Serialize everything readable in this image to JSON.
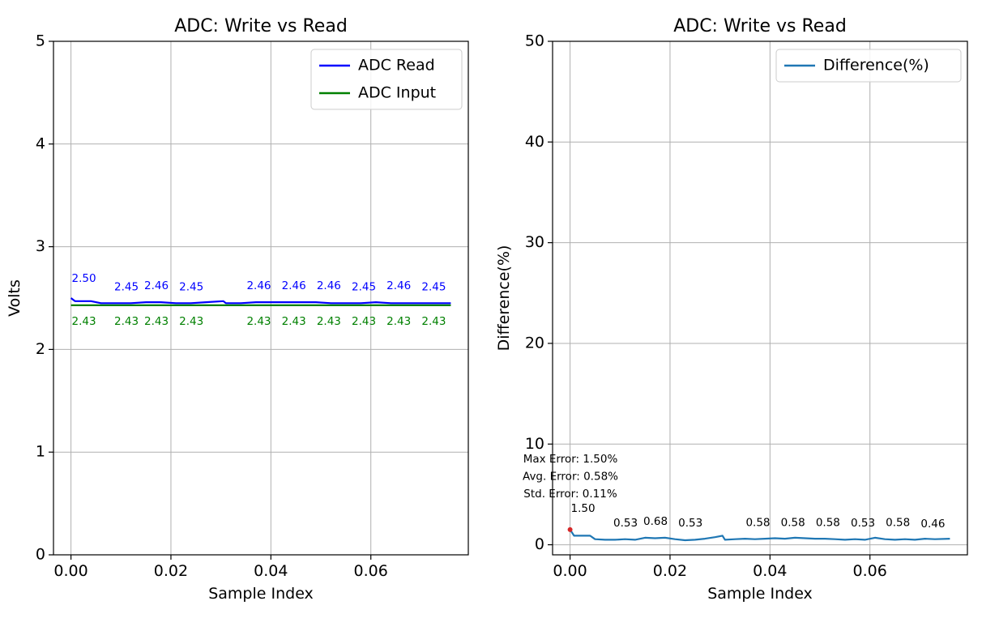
{
  "chart_data": [
    {
      "type": "line",
      "title": "ADC: Write vs Read",
      "xlabel": "Sample Index",
      "ylabel": "Volts",
      "xlim": [
        -0.0035,
        0.0795
      ],
      "ylim": [
        0,
        5
      ],
      "xticks": [
        0.0,
        0.02,
        0.04,
        0.06
      ],
      "xtick_labels": [
        "0.00",
        "0.02",
        "0.04",
        "0.06"
      ],
      "yticks": [
        0,
        1,
        2,
        3,
        4,
        5
      ],
      "ytick_labels": [
        "0",
        "1",
        "2",
        "3",
        "4",
        "5"
      ],
      "grid": true,
      "legend_position": "top-right",
      "series": [
        {
          "name": "ADC Read",
          "color": "#0000ff",
          "x": [
            0.0,
            0.0008,
            0.002,
            0.004,
            0.006,
            0.009,
            0.012,
            0.015,
            0.018,
            0.021,
            0.024,
            0.027,
            0.0305,
            0.031,
            0.034,
            0.037,
            0.04,
            0.043,
            0.046,
            0.049,
            0.052,
            0.055,
            0.058,
            0.061,
            0.064,
            0.067,
            0.07,
            0.073,
            0.076
          ],
          "y": [
            2.5,
            2.47,
            2.47,
            2.47,
            2.45,
            2.45,
            2.45,
            2.46,
            2.46,
            2.45,
            2.45,
            2.46,
            2.47,
            2.45,
            2.45,
            2.46,
            2.46,
            2.46,
            2.46,
            2.46,
            2.45,
            2.45,
            2.45,
            2.46,
            2.45,
            2.45,
            2.45,
            2.45,
            2.45
          ]
        },
        {
          "name": "ADC Input",
          "color": "#008000",
          "x": [
            0.0,
            0.076
          ],
          "y": [
            2.43,
            2.43
          ]
        }
      ],
      "annotations": [
        {
          "series": 0,
          "x": 0.0,
          "y": 2.5,
          "text": "2.50"
        },
        {
          "series": 0,
          "x": 0.0085,
          "y": 2.45,
          "text": "2.45"
        },
        {
          "series": 0,
          "x": 0.0145,
          "y": 2.46,
          "text": "2.46"
        },
        {
          "series": 0,
          "x": 0.0215,
          "y": 2.45,
          "text": "2.45"
        },
        {
          "series": 0,
          "x": 0.035,
          "y": 2.46,
          "text": "2.46"
        },
        {
          "series": 0,
          "x": 0.042,
          "y": 2.46,
          "text": "2.46"
        },
        {
          "series": 0,
          "x": 0.049,
          "y": 2.46,
          "text": "2.46"
        },
        {
          "series": 0,
          "x": 0.056,
          "y": 2.45,
          "text": "2.45"
        },
        {
          "series": 0,
          "x": 0.063,
          "y": 2.46,
          "text": "2.46"
        },
        {
          "series": 0,
          "x": 0.07,
          "y": 2.45,
          "text": "2.45"
        },
        {
          "series": 1,
          "x": 0.0,
          "y": 2.43,
          "text": "2.43"
        },
        {
          "series": 1,
          "x": 0.0085,
          "y": 2.43,
          "text": "2.43"
        },
        {
          "series": 1,
          "x": 0.0145,
          "y": 2.43,
          "text": "2.43"
        },
        {
          "series": 1,
          "x": 0.0215,
          "y": 2.43,
          "text": "2.43"
        },
        {
          "series": 1,
          "x": 0.035,
          "y": 2.43,
          "text": "2.43"
        },
        {
          "series": 1,
          "x": 0.042,
          "y": 2.43,
          "text": "2.43"
        },
        {
          "series": 1,
          "x": 0.049,
          "y": 2.43,
          "text": "2.43"
        },
        {
          "series": 1,
          "x": 0.056,
          "y": 2.43,
          "text": "2.43"
        },
        {
          "series": 1,
          "x": 0.063,
          "y": 2.43,
          "text": "2.43"
        },
        {
          "series": 1,
          "x": 0.07,
          "y": 2.43,
          "text": "2.43"
        }
      ]
    },
    {
      "type": "line",
      "title": "ADC: Write vs Read",
      "xlabel": "Sample Index",
      "ylabel": "Difference(%)",
      "xlim": [
        -0.0035,
        0.0795
      ],
      "ylim": [
        -1,
        50
      ],
      "xticks": [
        0.0,
        0.02,
        0.04,
        0.06
      ],
      "xtick_labels": [
        "0.00",
        "0.02",
        "0.04",
        "0.06"
      ],
      "yticks": [
        0,
        10,
        20,
        30,
        40,
        50
      ],
      "ytick_labels": [
        "0",
        "10",
        "20",
        "30",
        "40",
        "50"
      ],
      "grid": true,
      "legend_position": "top-right",
      "series": [
        {
          "name": "Difference(%)",
          "color": "#1f77b4",
          "x": [
            0.0,
            0.0008,
            0.002,
            0.004,
            0.005,
            0.007,
            0.009,
            0.011,
            0.013,
            0.015,
            0.017,
            0.019,
            0.021,
            0.023,
            0.025,
            0.027,
            0.029,
            0.0305,
            0.031,
            0.033,
            0.035,
            0.037,
            0.039,
            0.041,
            0.043,
            0.045,
            0.047,
            0.049,
            0.051,
            0.053,
            0.055,
            0.057,
            0.059,
            0.061,
            0.063,
            0.065,
            0.067,
            0.069,
            0.071,
            0.073,
            0.076
          ],
          "y": [
            1.5,
            0.9,
            0.9,
            0.9,
            0.55,
            0.5,
            0.5,
            0.55,
            0.5,
            0.7,
            0.65,
            0.7,
            0.55,
            0.45,
            0.5,
            0.6,
            0.75,
            0.9,
            0.5,
            0.55,
            0.6,
            0.55,
            0.6,
            0.65,
            0.6,
            0.7,
            0.65,
            0.6,
            0.6,
            0.55,
            0.5,
            0.55,
            0.5,
            0.7,
            0.55,
            0.5,
            0.55,
            0.5,
            0.6,
            0.55,
            0.6
          ]
        }
      ],
      "marker": {
        "x": 0.0,
        "y": 1.5,
        "color": "#d62728"
      },
      "annotations": [
        {
          "x": 0.0,
          "y": 1.5,
          "text": "1.50"
        },
        {
          "x": 0.0085,
          "y": 0.53,
          "text": "0.53"
        },
        {
          "x": 0.0145,
          "y": 0.68,
          "text": "0.68"
        },
        {
          "x": 0.0215,
          "y": 0.53,
          "text": "0.53"
        },
        {
          "x": 0.035,
          "y": 0.58,
          "text": "0.58"
        },
        {
          "x": 0.042,
          "y": 0.58,
          "text": "0.58"
        },
        {
          "x": 0.049,
          "y": 0.58,
          "text": "0.58"
        },
        {
          "x": 0.056,
          "y": 0.53,
          "text": "0.53"
        },
        {
          "x": 0.063,
          "y": 0.58,
          "text": "0.58"
        },
        {
          "x": 0.07,
          "y": 0.46,
          "text": "0.46"
        }
      ],
      "stats": [
        "Max Error: 1.50%",
        "Avg. Error: 0.58%",
        "Std. Error: 0.11%"
      ]
    }
  ]
}
